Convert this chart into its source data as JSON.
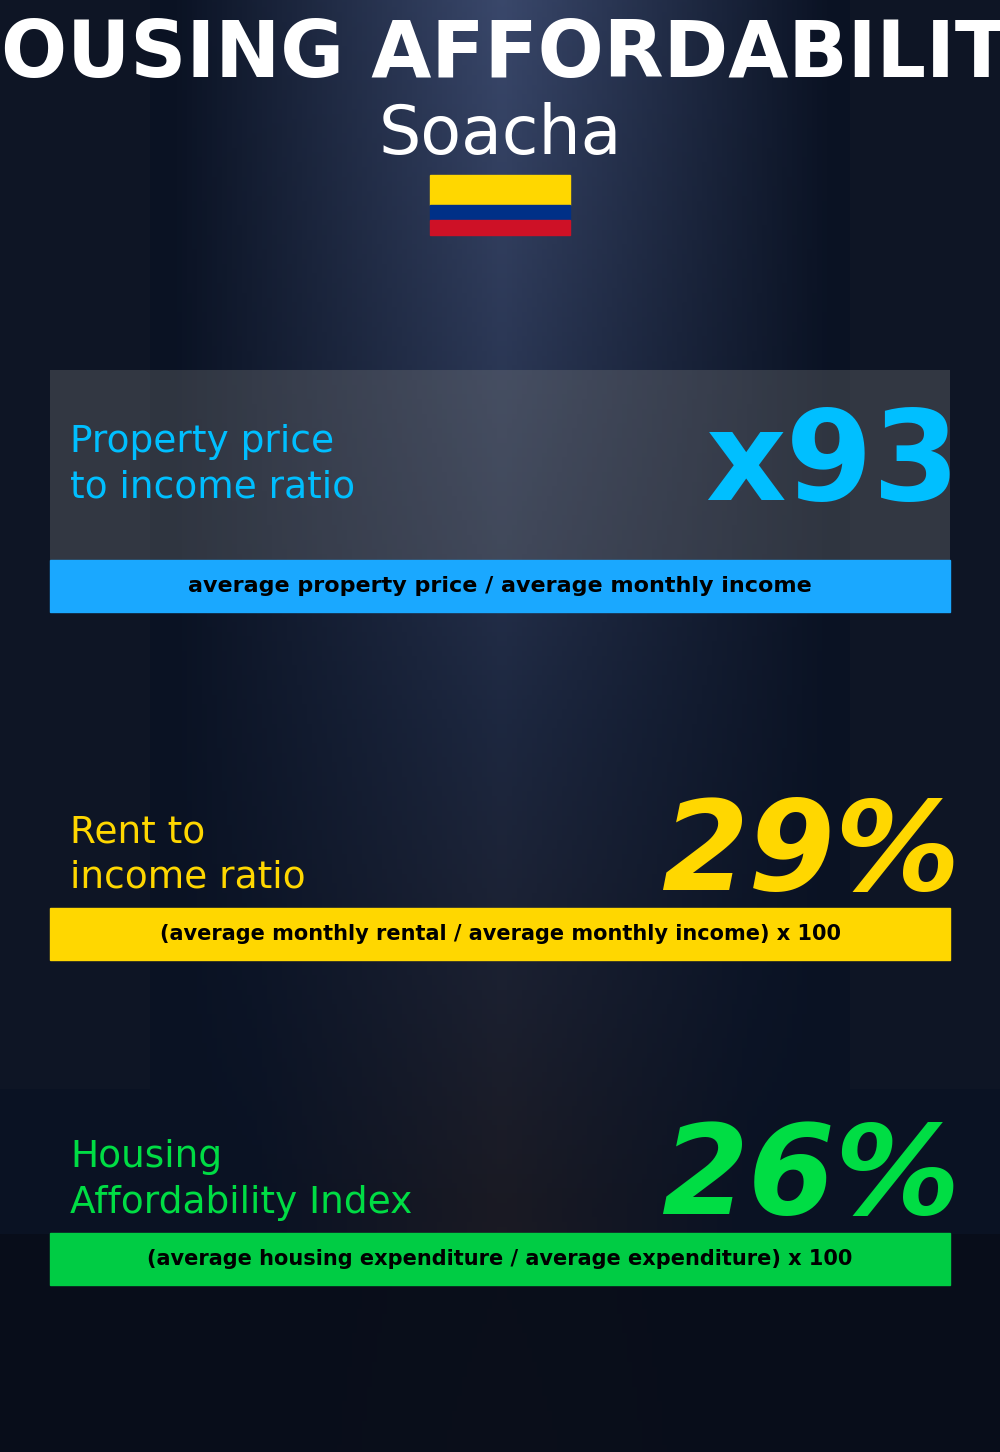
{
  "title_line1": "HOUSING AFFORDABILITY",
  "title_line2": "Soacha",
  "bg_color": "#0a0f1a",
  "section1_label": "Property price\nto income ratio",
  "section1_value": "x93",
  "section1_label_color": "#00bfff",
  "section1_value_color": "#00bfff",
  "section1_subtitle": "average property price / average monthly income",
  "section1_subtitle_bg": "#1aa8ff",
  "section1_subtitle_text_color": "#000000",
  "section1_panel_color": "#808080",
  "section1_panel_alpha": 0.32,
  "section2_label": "Rent to\nincome ratio",
  "section2_value": "29%",
  "section2_label_color": "#FFD700",
  "section2_value_color": "#FFD700",
  "section2_subtitle": "(average monthly rental / average monthly income) x 100",
  "section2_subtitle_bg": "#FFD700",
  "section2_subtitle_text_color": "#000000",
  "section3_label": "Housing\nAffordability Index",
  "section3_value": "26%",
  "section3_label_color": "#00dd44",
  "section3_value_color": "#00dd44",
  "section3_subtitle": "(average housing expenditure / average expenditure) x 100",
  "section3_subtitle_bg": "#00cc44",
  "section3_subtitle_text_color": "#000000",
  "flag_yellow": "#FFD700",
  "flag_blue": "#003087",
  "flag_red": "#CE1126",
  "figw": 10.0,
  "figh": 14.52
}
